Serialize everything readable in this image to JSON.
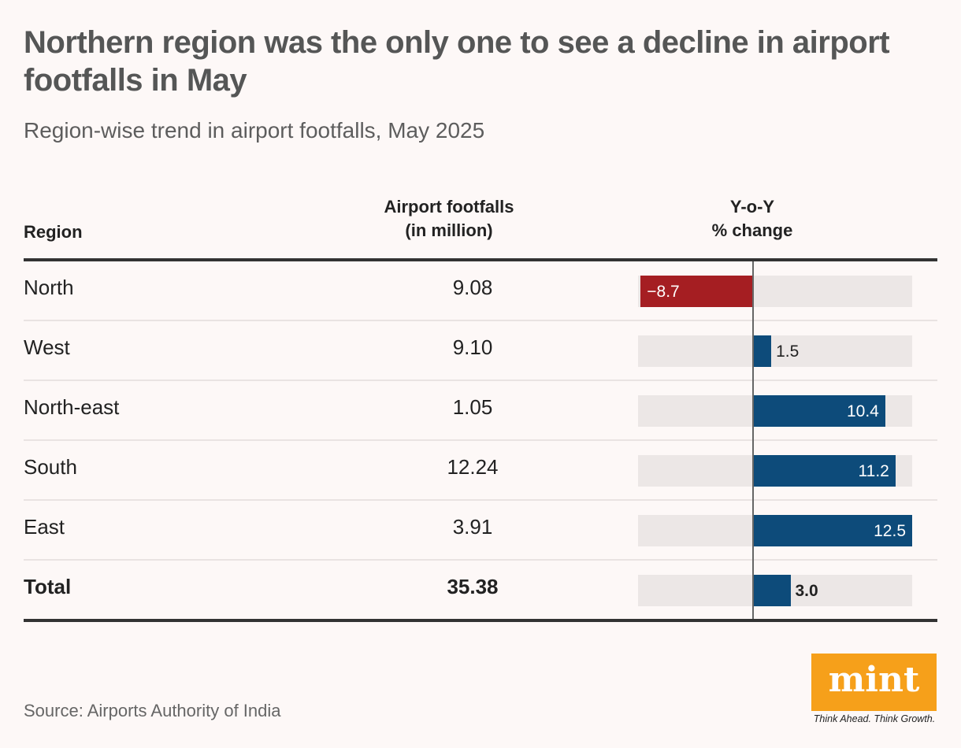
{
  "title": "Northern region was the only one to see a decline in airport footfalls in May",
  "subtitle": "Region-wise trend in airport footfalls, May 2025",
  "headers": {
    "region": "Region",
    "footfalls_line1": "Airport footfalls",
    "footfalls_line2": "(in million)",
    "change_line1": "Y-o-Y",
    "change_line2": "% change"
  },
  "source": "Source: Airports Authority of India",
  "logo": {
    "text": "mint",
    "tagline": "Think Ahead. Think Growth.",
    "color": "#f6a01a"
  },
  "colors": {
    "positive": "#0d4b7a",
    "negative": "#a51e22",
    "track": "#ece7e6"
  },
  "chart_data": {
    "type": "table",
    "title": "Northern region was the only one to see a decline in airport footfalls in May",
    "subtitle": "Region-wise trend in airport footfalls, May 2025",
    "columns": [
      "Region",
      "Airport footfalls (in million)",
      "Y-o-Y % change"
    ],
    "bar_range": [
      -8.9,
      12.5
    ],
    "rows": [
      {
        "region": "North",
        "footfalls": "9.08",
        "change": -8.7,
        "change_label": "−8.7"
      },
      {
        "region": "West",
        "footfalls": "9.10",
        "change": 1.5,
        "change_label": "1.5"
      },
      {
        "region": "North-east",
        "footfalls": "1.05",
        "change": 10.4,
        "change_label": "10.4"
      },
      {
        "region": "South",
        "footfalls": "12.24",
        "change": 11.2,
        "change_label": "11.2"
      },
      {
        "region": "East",
        "footfalls": "3.91",
        "change": 12.5,
        "change_label": "12.5"
      }
    ],
    "total": {
      "region": "Total",
      "footfalls": "35.38",
      "change": 3.0,
      "change_label": "3.0"
    }
  }
}
